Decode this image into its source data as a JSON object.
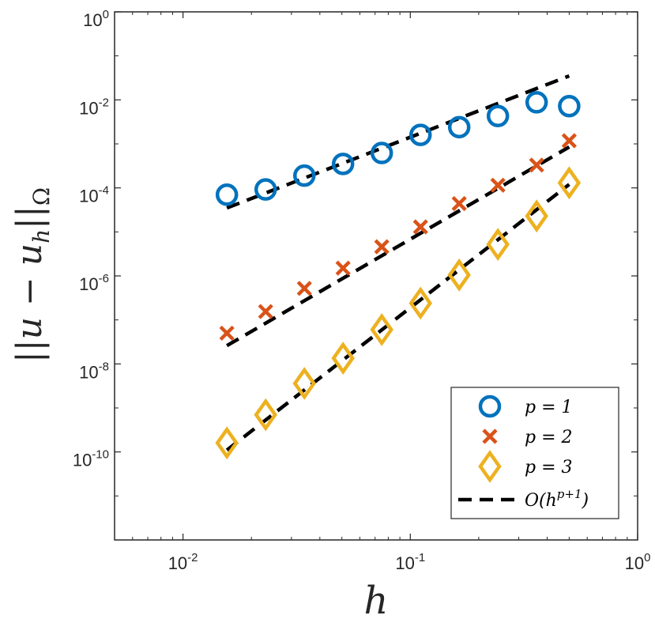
{
  "chart_data": {
    "type": "scatter",
    "xscale": "log",
    "yscale": "log",
    "xlim": [
      0.005,
      1
    ],
    "ylim": [
      1e-12,
      1
    ],
    "xlabel": "h",
    "ylabel": "||u − u_h||_Ω",
    "x_ticks": [
      {
        "value": 0.01,
        "base": "10",
        "exp": "-2"
      },
      {
        "value": 0.1,
        "base": "10",
        "exp": "-1"
      },
      {
        "value": 1,
        "base": "10",
        "exp": "0"
      }
    ],
    "y_ticks": [
      {
        "value": 1,
        "base": "10",
        "exp": "0"
      },
      {
        "value": 0.01,
        "base": "10",
        "exp": "-2"
      },
      {
        "value": 0.0001,
        "base": "10",
        "exp": "-4"
      },
      {
        "value": 1e-06,
        "base": "10",
        "exp": "-6"
      },
      {
        "value": 1e-08,
        "base": "10",
        "exp": "-8"
      },
      {
        "value": 1e-10,
        "base": "10",
        "exp": "-10"
      }
    ],
    "x": [
      0.0156,
      0.0231,
      0.0342,
      0.0506,
      0.0749,
      0.1109,
      0.1641,
      0.2429,
      0.3595,
      0.5
    ],
    "series": [
      {
        "name": "p = 1",
        "marker": "circle",
        "color": "#0072BD",
        "values": [
          7e-05,
          9.2e-05,
          0.00019,
          0.00035,
          0.00062,
          0.0016,
          0.0024,
          0.0043,
          0.0088,
          0.0072
        ]
      },
      {
        "name": "p = 2",
        "marker": "x",
        "color": "#D95319",
        "values": [
          5e-08,
          1.55e-07,
          5.2e-07,
          1.5e-06,
          4.6e-06,
          1.3e-05,
          4.4e-05,
          0.000115,
          0.00033,
          0.00118
        ]
      },
      {
        "name": "p = 3",
        "marker": "diamond",
        "color": "#EDB120",
        "values": [
          1.6e-10,
          7e-10,
          3.6e-09,
          1.35e-08,
          6e-08,
          2.4e-07,
          1.05e-06,
          5.2e-06,
          2.3e-05,
          0.00013
        ]
      }
    ],
    "reference_lines": [
      {
        "name": "O(h^{p+1})",
        "style": "dashed",
        "color": "#000000",
        "x": [
          0.0156,
          0.5
        ],
        "curves": [
          {
            "y": [
              3.5e-05,
              0.035
            ]
          },
          {
            "y": [
              2.6e-08,
              0.00085
            ]
          },
          {
            "y": [
              1.1e-10,
              0.00012
            ]
          }
        ]
      }
    ],
    "legend": {
      "position": "bottom-right",
      "entries": [
        {
          "label": "p = 1",
          "marker": "circle",
          "color": "#0072BD"
        },
        {
          "label": "p = 2",
          "marker": "x",
          "color": "#D95319"
        },
        {
          "label": "p = 3",
          "marker": "diamond",
          "color": "#EDB120"
        },
        {
          "label": "O(h^{p+1})",
          "marker": "dashed-line",
          "color": "#000000"
        }
      ]
    }
  }
}
